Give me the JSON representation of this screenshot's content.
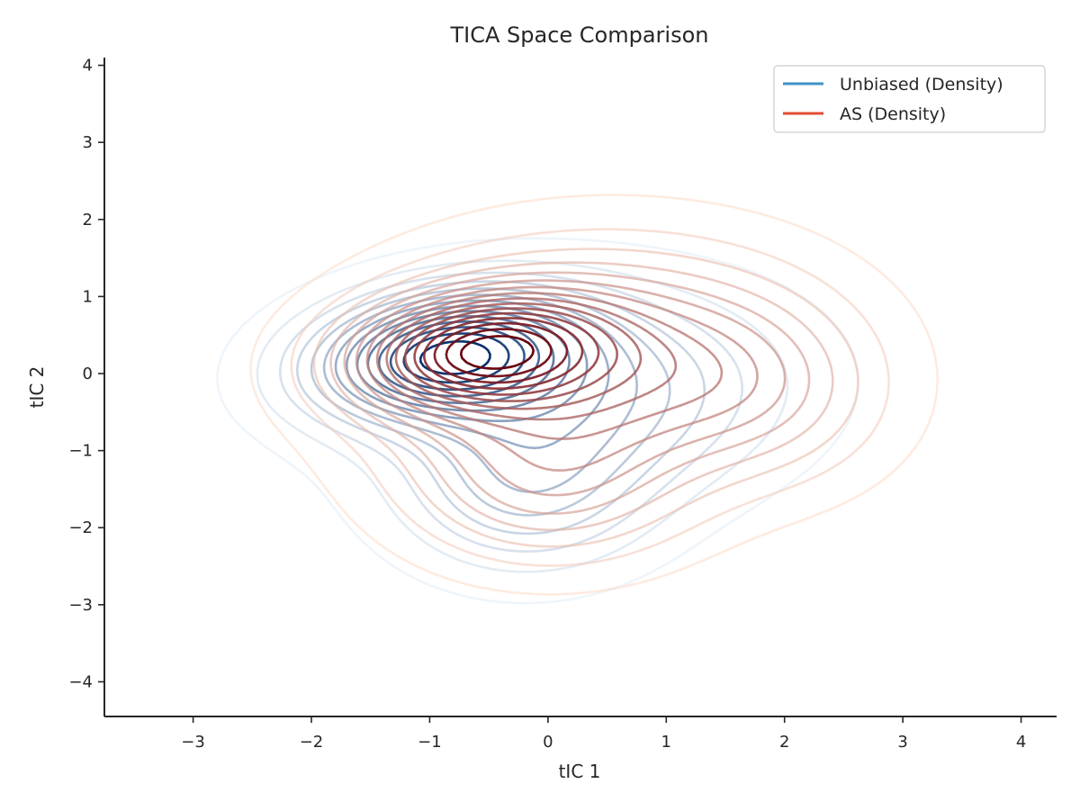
{
  "chart_data": {
    "type": "contour",
    "title": "TICA Space Comparison",
    "xlabel": "tIC 1",
    "ylabel": "tIC 2",
    "xlim": [
      -3.75,
      4.3
    ],
    "ylim": [
      -4.45,
      4.1
    ],
    "xticks": [
      -3,
      -2,
      -1,
      0,
      1,
      2,
      3,
      4
    ],
    "yticks": [
      -4,
      -3,
      -2,
      -1,
      0,
      1,
      2,
      3,
      4
    ],
    "xtick_labels": [
      "−3",
      "−2",
      "−1",
      "0",
      "1",
      "2",
      "3",
      "4"
    ],
    "ytick_labels": [
      "−4",
      "−3",
      "−2",
      "−1",
      "0",
      "1",
      "2",
      "3",
      "4"
    ],
    "grid": false,
    "legend_position": "top-right",
    "series": [
      {
        "name": "Unbiased (Density)",
        "legend_color": "#4292c6",
        "color_light": "#e0ecf8",
        "color_dark": "#08306b",
        "levels": 14,
        "components": [
          {
            "mean": [
              -0.9,
              0.25
            ],
            "sd": [
              0.75,
              0.55
            ],
            "rho": 0.2,
            "weight": 1.0
          },
          {
            "mean": [
              0.3,
              -0.3
            ],
            "sd": [
              1.1,
              0.9
            ],
            "rho": 0.1,
            "weight": 0.45
          },
          {
            "mean": [
              -0.2,
              -1.6
            ],
            "sd": [
              0.7,
              0.7
            ],
            "rho": 0.0,
            "weight": 0.3
          }
        ]
      },
      {
        "name": "AS (Density)",
        "legend_color": "#e34a33",
        "color_light": "#fddbc7",
        "color_dark": "#67000d",
        "levels": 16,
        "components": [
          {
            "mean": [
              -0.6,
              0.3
            ],
            "sd": [
              0.7,
              0.5
            ],
            "rho": 0.15,
            "weight": 1.0
          },
          {
            "mean": [
              0.4,
              0.1
            ],
            "sd": [
              1.2,
              1.0
            ],
            "rho": 0.05,
            "weight": 0.7
          },
          {
            "mean": [
              0.0,
              -1.5
            ],
            "sd": [
              0.8,
              0.7
            ],
            "rho": 0.0,
            "weight": 0.35
          },
          {
            "mean": [
              1.8,
              -0.2
            ],
            "sd": [
              0.7,
              0.8
            ],
            "rho": -0.1,
            "weight": 0.25
          }
        ]
      }
    ]
  }
}
